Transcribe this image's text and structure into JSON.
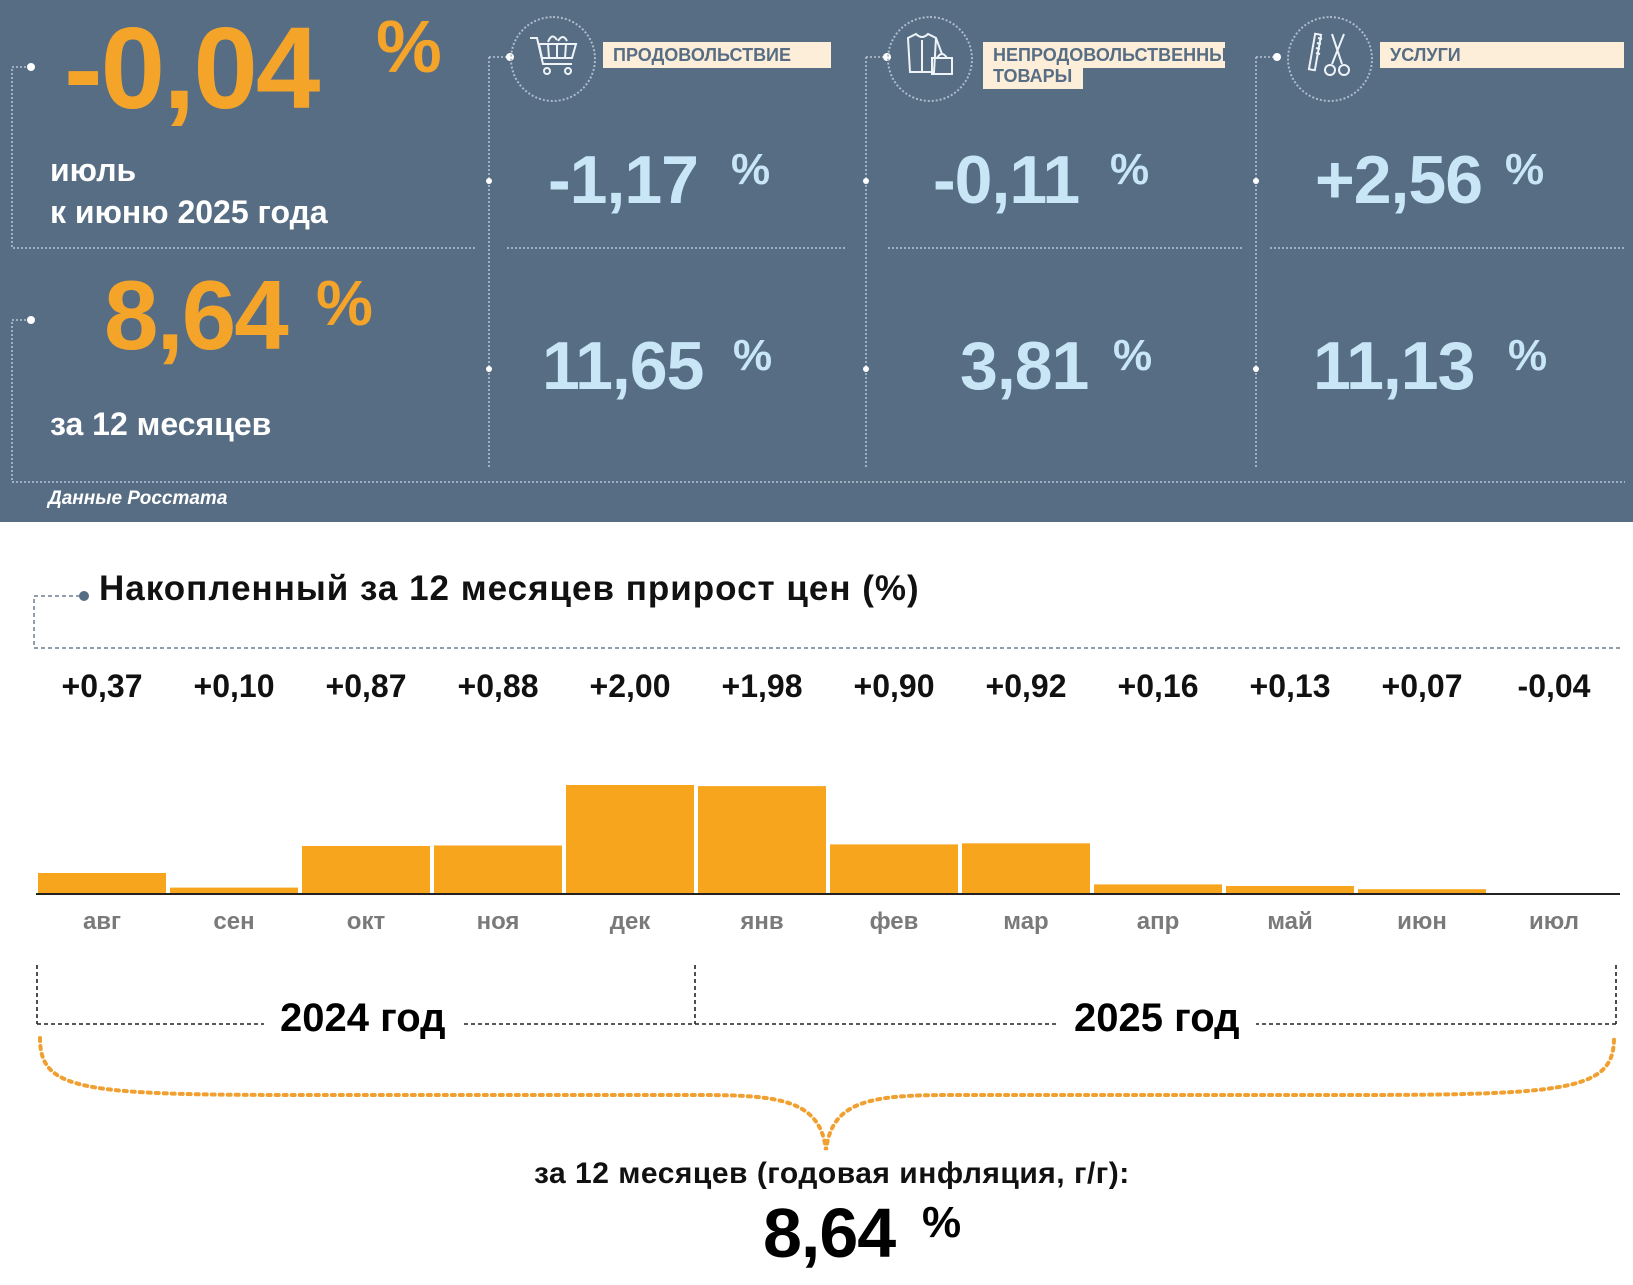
{
  "colors": {
    "panel_bg": "#566d84",
    "accent_orange": "#f5a42a",
    "value_blue": "#c8e6f6",
    "bar": "#f8a51e",
    "label_bg": "#fdeeda"
  },
  "monthly": {
    "value": "-0,04",
    "pct": "%",
    "line1": "июль",
    "line2": "к июню 2025 года"
  },
  "annual": {
    "value": "8,64",
    "pct": "%",
    "label": "за 12 месяцев"
  },
  "categories": [
    {
      "label": "ПРОДОВОЛЬСТВИЕ",
      "icon": "shopping-cart-icon",
      "monthly": "-1,17",
      "annual": "11,65",
      "pct": "%"
    },
    {
      "label_line1": "НЕПРОДОВОЛЬСТВЕННЫЕ",
      "label_line2": "ТОВАРЫ",
      "icon": "clothes-bag-icon",
      "monthly": "-0,11",
      "annual": "3,81",
      "pct": "%"
    },
    {
      "label": "УСЛУГИ",
      "icon": "comb-scissors-icon",
      "monthly": "+2,56",
      "annual": "11,13",
      "pct": "%"
    }
  ],
  "source": "Данные Росстата",
  "chart_data": {
    "type": "bar",
    "title": "Накопленный за 12 месяцев прирост цен (%)",
    "categories": [
      "авг",
      "сен",
      "окт",
      "ноя",
      "дек",
      "янв",
      "фев",
      "мар",
      "апр",
      "май",
      "июн",
      "июл"
    ],
    "values": [
      0.37,
      0.1,
      0.87,
      0.88,
      2.0,
      1.98,
      0.9,
      0.92,
      0.16,
      0.13,
      0.07,
      -0.04
    ],
    "value_labels": [
      "+0,37",
      "+0,10",
      "+0,87",
      "+0,88",
      "+2,00",
      "+1,98",
      "+0,90",
      "+0,92",
      "+0,16",
      "+0,13",
      "+0,07",
      "-0,04"
    ],
    "years": [
      "2024 год",
      "2025 год"
    ],
    "grid": false
  },
  "bottom": {
    "caption": "за 12 месяцев (годовая инфляция, г/г):",
    "value": "8,64",
    "pct": "%"
  }
}
